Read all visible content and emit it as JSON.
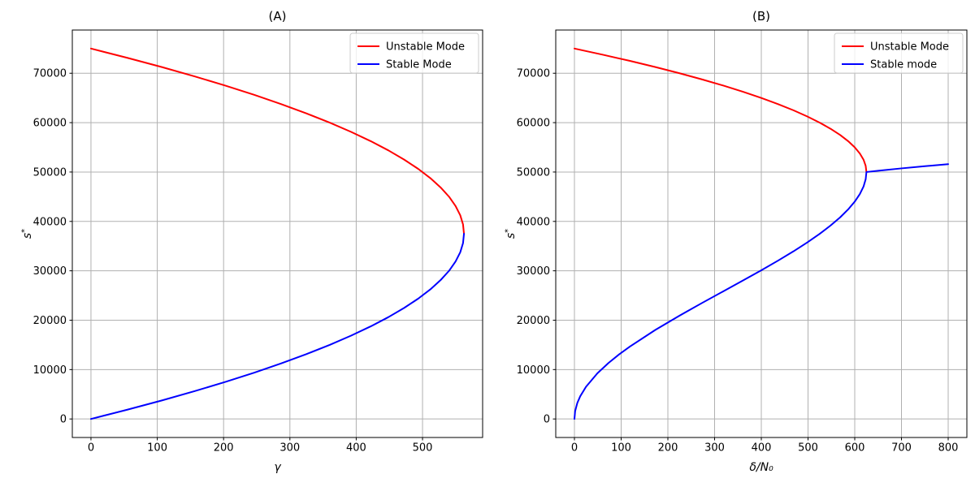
{
  "figure": {
    "background": "#ffffff",
    "text_color": "#000000",
    "grid_color": "#b0b0b0",
    "spine_color": "#000000",
    "legend_edge_color": "#cccccc"
  },
  "chart_data": [
    {
      "type": "line",
      "panel": "A",
      "title": "(A)",
      "xlabel": "γ",
      "ylabel": "s*",
      "xlim": [
        -28.125,
        590.625
      ],
      "ylim": [
        -3750,
        78750
      ],
      "xticks": [
        0,
        100,
        200,
        300,
        400,
        500
      ],
      "yticks": [
        0,
        10000,
        20000,
        30000,
        40000,
        50000,
        60000,
        70000
      ],
      "grid": true,
      "legend": {
        "position": "upper-right",
        "entries": [
          {
            "label": "Unstable Mode",
            "color": "#ff0000"
          },
          {
            "label": "Stable Mode",
            "color": "#0000ff"
          }
        ]
      },
      "series": [
        {
          "name": "Unstable Mode",
          "color": "#ff0000",
          "linewidth": 2,
          "points": [
            [
              0,
              75000
            ],
            [
              54.8,
              73125
            ],
            [
              106.9,
              71250
            ],
            [
              156.1,
              69375
            ],
            [
              202.5,
              67500
            ],
            [
              246.1,
              65625
            ],
            [
              286.9,
              63750
            ],
            [
              324.8,
              61875
            ],
            [
              360,
              60000
            ],
            [
              392.3,
              58125
            ],
            [
              421.9,
              56250
            ],
            [
              448.6,
              54375
            ],
            [
              472.5,
              52500
            ],
            [
              493.6,
              50625
            ],
            [
              511.9,
              48750
            ],
            [
              527.3,
              46875
            ],
            [
              540,
              45000
            ],
            [
              549.8,
              43125
            ],
            [
              556.9,
              41250
            ],
            [
              561.1,
              39375
            ],
            [
              562.5,
              37500
            ]
          ]
        },
        {
          "name": "Stable Mode",
          "color": "#0000ff",
          "linewidth": 2,
          "points": [
            [
              0,
              0
            ],
            [
              54.8,
              1875
            ],
            [
              106.9,
              3750
            ],
            [
              156.1,
              5625
            ],
            [
              202.5,
              7500
            ],
            [
              246.1,
              9375
            ],
            [
              286.9,
              11250
            ],
            [
              324.8,
              13125
            ],
            [
              360,
              15000
            ],
            [
              392.3,
              16875
            ],
            [
              421.9,
              18750
            ],
            [
              448.6,
              20625
            ],
            [
              472.5,
              22500
            ],
            [
              493.6,
              24375
            ],
            [
              511.9,
              26250
            ],
            [
              527.3,
              28125
            ],
            [
              540,
              30000
            ],
            [
              549.8,
              31875
            ],
            [
              556.9,
              33750
            ],
            [
              561.1,
              35625
            ],
            [
              562.5,
              37500
            ]
          ]
        }
      ]
    },
    {
      "type": "line",
      "panel": "B",
      "title": "(B)",
      "xlabel": "δ/N₀",
      "ylabel": "s*",
      "xlim": [
        -40,
        840
      ],
      "ylim": [
        -3750,
        78750
      ],
      "xticks": [
        0,
        100,
        200,
        300,
        400,
        500,
        600,
        700,
        800
      ],
      "yticks": [
        0,
        10000,
        20000,
        30000,
        40000,
        50000,
        60000,
        70000
      ],
      "grid": true,
      "legend": {
        "position": "upper-right",
        "entries": [
          {
            "label": "Unstable Mode",
            "color": "#ff0000"
          },
          {
            "label": "Stable mode",
            "color": "#0000ff"
          }
        ]
      },
      "series": [
        {
          "name": "Unstable Mode",
          "color": "#ff0000",
          "linewidth": 2,
          "points": [
            [
              0,
              75000
            ],
            [
              60.9,
              73750
            ],
            [
              118.8,
              72500
            ],
            [
              173.4,
              71250
            ],
            [
              225,
              70000
            ],
            [
              273.4,
              68750
            ],
            [
              318.8,
              67500
            ],
            [
              360.9,
              66250
            ],
            [
              400,
              65000
            ],
            [
              435.9,
              63750
            ],
            [
              468.8,
              62500
            ],
            [
              498.4,
              61250
            ],
            [
              525,
              60000
            ],
            [
              548.4,
              58750
            ],
            [
              568.8,
              57500
            ],
            [
              585.9,
              56250
            ],
            [
              600,
              55000
            ],
            [
              610.9,
              53750
            ],
            [
              618.8,
              52500
            ],
            [
              623.4,
              51250
            ],
            [
              625,
              50000
            ]
          ]
        },
        {
          "name": "Stable mode",
          "color": "#0000ff",
          "linewidth": 2,
          "points": [
            [
              0,
              0
            ],
            [
              1.5,
              1593
            ],
            [
              6.2,
              3254
            ],
            [
              12.4,
              4604
            ],
            [
              24.8,
              6517
            ],
            [
              49,
              9232
            ],
            [
              72.8,
              11327
            ],
            [
              96,
              13101
            ],
            [
              118.8,
              14673
            ],
            [
              173.4,
              18048
            ],
            [
              225,
              20930
            ],
            [
              273.4,
              23500
            ],
            [
              318.8,
              25853
            ],
            [
              360.9,
              28042
            ],
            [
              400,
              30105
            ],
            [
              435.9,
              32065
            ],
            [
              468.8,
              33941
            ],
            [
              498.4,
              35746
            ],
            [
              525,
              37491
            ],
            [
              548.4,
              39183
            ],
            [
              568.8,
              40829
            ],
            [
              585.9,
              42435
            ],
            [
              600,
              44006
            ],
            [
              610.9,
              45544
            ],
            [
              618.8,
              47055
            ],
            [
              623.4,
              48539
            ],
            [
              625,
              50000
            ],
            [
              650,
              50260
            ],
            [
              700,
              50740
            ],
            [
              750,
              51180
            ],
            [
              800,
              51600
            ]
          ]
        }
      ]
    }
  ]
}
